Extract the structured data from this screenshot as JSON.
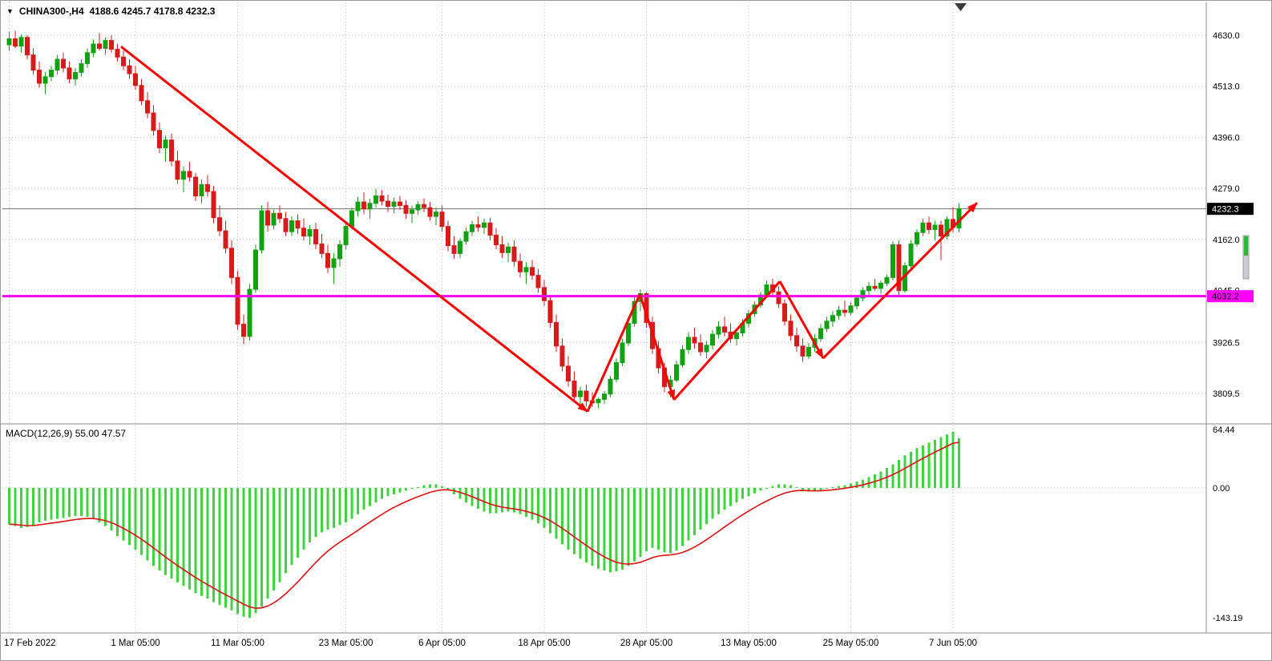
{
  "header": {
    "dropdown_icon": "▼",
    "symbol_period": "CHINA300-,H4",
    "ohlc_readout": "4188.6 4245.7 4178.8 4232.3"
  },
  "price_axis": {
    "ticks": [
      {
        "label": "4630.0",
        "value": 4630.0
      },
      {
        "label": "4513.0",
        "value": 4513.0
      },
      {
        "label": "4396.0",
        "value": 4396.0
      },
      {
        "label": "4279.0",
        "value": 4279.0
      },
      {
        "label": "4162.0",
        "value": 4162.0
      },
      {
        "label": "4045.0",
        "value": 4045.0
      },
      {
        "label": "3926.5",
        "value": 3926.5
      },
      {
        "label": "3809.5",
        "value": 3809.5
      }
    ],
    "badges": [
      {
        "name": "current-price-badge",
        "label": "4232.3",
        "value": 4232.3,
        "bg": "#000000",
        "fg": "#ffffff"
      },
      {
        "name": "hline-price-badge",
        "label": "4032.2",
        "value": 4032.2,
        "bg": "#ff00ff",
        "fg": "#000000"
      }
    ]
  },
  "macd_panel": {
    "label": "MACD(12,26,9) 55.00 47.57",
    "ticks": [
      {
        "label": "64.44",
        "value": 64.44
      },
      {
        "label": "0.00",
        "value": 0
      },
      {
        "label": "-143.19",
        "value": -143.19
      }
    ]
  },
  "x_axis": [
    {
      "label": "17 Feb 2022",
      "index": 0
    },
    {
      "label": "1 Mar 05:00",
      "index": 21
    },
    {
      "label": "11 Mar 05:00",
      "index": 38
    },
    {
      "label": "23 Mar 05:00",
      "index": 56
    },
    {
      "label": "6 Apr 05:00",
      "index": 72
    },
    {
      "label": "18 Apr 05:00",
      "index": 89
    },
    {
      "label": "28 Apr 05:00",
      "index": 106
    },
    {
      "label": "13 May 05:00",
      "index": 123
    },
    {
      "label": "25 May 05:00",
      "index": 140
    },
    {
      "label": "7 Jun 05:00",
      "index": 157
    }
  ],
  "chart_data": {
    "type": "candlestick",
    "symbol": "CHINA300-",
    "timeframe": "H4",
    "title": "CHINA300-,H4",
    "ohlc_last": {
      "open": 4188.6,
      "high": 4245.7,
      "low": 4178.8,
      "close": 4232.3
    },
    "price_line": 4232.3,
    "horizontal_line": 4032.2,
    "ylim_price": [
      3741.6,
      4705.2
    ],
    "grid": true,
    "candles": [
      [
        4608,
        4638,
        4595,
        4622
      ],
      [
        4622,
        4640,
        4600,
        4605
      ],
      [
        4605,
        4632,
        4590,
        4625
      ],
      [
        4625,
        4630,
        4575,
        4585
      ],
      [
        4585,
        4600,
        4540,
        4550
      ],
      [
        4550,
        4570,
        4510,
        4520
      ],
      [
        4520,
        4545,
        4495,
        4535
      ],
      [
        4535,
        4560,
        4525,
        4550
      ],
      [
        4550,
        4585,
        4540,
        4575
      ],
      [
        4575,
        4590,
        4545,
        4555
      ],
      [
        4555,
        4570,
        4520,
        4530
      ],
      [
        4530,
        4555,
        4515,
        4545
      ],
      [
        4545,
        4575,
        4535,
        4565
      ],
      [
        4565,
        4600,
        4555,
        4590
      ],
      [
        4590,
        4620,
        4580,
        4610
      ],
      [
        4610,
        4635,
        4595,
        4600
      ],
      [
        4600,
        4625,
        4585,
        4618
      ],
      [
        4618,
        4630,
        4590,
        4598
      ],
      [
        4598,
        4610,
        4570,
        4580
      ],
      [
        4580,
        4595,
        4550,
        4560
      ],
      [
        4560,
        4575,
        4530,
        4542
      ],
      [
        4542,
        4560,
        4505,
        4515
      ],
      [
        4515,
        4530,
        4470,
        4480
      ],
      [
        4480,
        4500,
        4440,
        4452
      ],
      [
        4452,
        4470,
        4400,
        4412
      ],
      [
        4412,
        4430,
        4360,
        4372
      ],
      [
        4372,
        4400,
        4340,
        4390
      ],
      [
        4390,
        4405,
        4330,
        4342
      ],
      [
        4342,
        4365,
        4290,
        4300
      ],
      [
        4300,
        4330,
        4270,
        4318
      ],
      [
        4318,
        4340,
        4295,
        4305
      ],
      [
        4305,
        4315,
        4250,
        4262
      ],
      [
        4262,
        4300,
        4245,
        4288
      ],
      [
        4288,
        4310,
        4260,
        4272
      ],
      [
        4272,
        4285,
        4200,
        4212
      ],
      [
        4212,
        4240,
        4170,
        4182
      ],
      [
        4182,
        4205,
        4130,
        4142
      ],
      [
        4142,
        4160,
        4060,
        4075
      ],
      [
        4075,
        4090,
        3955,
        3968
      ],
      [
        3968,
        3990,
        3922,
        3940
      ],
      [
        3940,
        4060,
        3930,
        4048
      ],
      [
        4048,
        4150,
        4040,
        4138
      ],
      [
        4138,
        4240,
        4130,
        4228
      ],
      [
        4228,
        4248,
        4180,
        4195
      ],
      [
        4195,
        4230,
        4185,
        4222
      ],
      [
        4222,
        4240,
        4200,
        4210
      ],
      [
        4210,
        4225,
        4170,
        4180
      ],
      [
        4180,
        4215,
        4170,
        4205
      ],
      [
        4205,
        4220,
        4175,
        4188
      ],
      [
        4188,
        4210,
        4160,
        4170
      ],
      [
        4170,
        4195,
        4150,
        4185
      ],
      [
        4185,
        4200,
        4140,
        4152
      ],
      [
        4152,
        4175,
        4120,
        4130
      ],
      [
        4130,
        4150,
        4085,
        4098
      ],
      [
        4098,
        4130,
        4060,
        4118
      ],
      [
        4118,
        4160,
        4100,
        4150
      ],
      [
        4150,
        4200,
        4140,
        4192
      ],
      [
        4192,
        4235,
        4185,
        4228
      ],
      [
        4228,
        4260,
        4215,
        4248
      ],
      [
        4248,
        4270,
        4220,
        4232
      ],
      [
        4232,
        4255,
        4210,
        4245
      ],
      [
        4245,
        4278,
        4235,
        4262
      ],
      [
        4262,
        4275,
        4240,
        4250
      ],
      [
        4250,
        4265,
        4225,
        4238
      ],
      [
        4238,
        4258,
        4222,
        4248
      ],
      [
        4248,
        4262,
        4230,
        4240
      ],
      [
        4240,
        4252,
        4210,
        4222
      ],
      [
        4222,
        4240,
        4200,
        4230
      ],
      [
        4230,
        4250,
        4218,
        4242
      ],
      [
        4242,
        4256,
        4225,
        4235
      ],
      [
        4235,
        4248,
        4205,
        4215
      ],
      [
        4215,
        4235,
        4195,
        4225
      ],
      [
        4225,
        4240,
        4180,
        4192
      ],
      [
        4192,
        4205,
        4135,
        4148
      ],
      [
        4148,
        4170,
        4118,
        4130
      ],
      [
        4130,
        4165,
        4120,
        4158
      ],
      [
        4158,
        4190,
        4150,
        4180
      ],
      [
        4180,
        4205,
        4170,
        4196
      ],
      [
        4196,
        4215,
        4180,
        4190
      ],
      [
        4190,
        4210,
        4175,
        4200
      ],
      [
        4200,
        4212,
        4160,
        4172
      ],
      [
        4172,
        4188,
        4140,
        4150
      ],
      [
        4150,
        4170,
        4120,
        4132
      ],
      [
        4132,
        4155,
        4110,
        4145
      ],
      [
        4145,
        4160,
        4100,
        4112
      ],
      [
        4112,
        4130,
        4075,
        4088
      ],
      [
        4088,
        4110,
        4060,
        4098
      ],
      [
        4098,
        4115,
        4070,
        4080
      ],
      [
        4080,
        4095,
        4040,
        4052
      ],
      [
        4052,
        4070,
        4010,
        4022
      ],
      [
        4022,
        4035,
        3960,
        3972
      ],
      [
        3972,
        3990,
        3905,
        3918
      ],
      [
        3918,
        3935,
        3860,
        3872
      ],
      [
        3872,
        3895,
        3825,
        3838
      ],
      [
        3838,
        3860,
        3790,
        3802
      ],
      [
        3802,
        3825,
        3775,
        3815
      ],
      [
        3815,
        3830,
        3780,
        3792
      ],
      [
        3792,
        3812,
        3778,
        3788
      ],
      [
        3788,
        3800,
        3776,
        3796
      ],
      [
        3796,
        3815,
        3785,
        3808
      ],
      [
        3808,
        3850,
        3800,
        3842
      ],
      [
        3842,
        3890,
        3835,
        3880
      ],
      [
        3880,
        3935,
        3872,
        3925
      ],
      [
        3925,
        3980,
        3918,
        3970
      ],
      [
        3970,
        4030,
        3962,
        4020
      ],
      [
        4020,
        4048,
        3998,
        4038
      ],
      [
        4038,
        4042,
        3960,
        3972
      ],
      [
        3972,
        3985,
        3900,
        3912
      ],
      [
        3912,
        3930,
        3855,
        3868
      ],
      [
        3868,
        3880,
        3812,
        3825
      ],
      [
        3825,
        3850,
        3800,
        3840
      ],
      [
        3840,
        3885,
        3835,
        3875
      ],
      [
        3875,
        3920,
        3868,
        3910
      ],
      [
        3910,
        3950,
        3900,
        3938
      ],
      [
        3938,
        3960,
        3912,
        3925
      ],
      [
        3925,
        3945,
        3895,
        3905
      ],
      [
        3905,
        3930,
        3890,
        3920
      ],
      [
        3920,
        3955,
        3910,
        3945
      ],
      [
        3945,
        3975,
        3935,
        3962
      ],
      [
        3962,
        3985,
        3940,
        3950
      ],
      [
        3950,
        3970,
        3925,
        3935
      ],
      [
        3935,
        3958,
        3920,
        3948
      ],
      [
        3948,
        3980,
        3940,
        3970
      ],
      [
        3970,
        4000,
        3960,
        3992
      ],
      [
        3992,
        4020,
        3985,
        4012
      ],
      [
        4012,
        4042,
        4005,
        4035
      ],
      [
        4035,
        4068,
        4028,
        4058
      ],
      [
        4058,
        4072,
        4030,
        4042
      ],
      [
        4042,
        4055,
        4005,
        4015
      ],
      [
        4015,
        4025,
        3965,
        3975
      ],
      [
        3975,
        3990,
        3930,
        3942
      ],
      [
        3942,
        3960,
        3905,
        3918
      ],
      [
        3918,
        3935,
        3882,
        3895
      ],
      [
        3895,
        3925,
        3888,
        3915
      ],
      [
        3915,
        3945,
        3905,
        3935
      ],
      [
        3935,
        3968,
        3928,
        3958
      ],
      [
        3958,
        3985,
        3950,
        3975
      ],
      [
        3975,
        3998,
        3962,
        3988
      ],
      [
        3988,
        4010,
        3978,
        4000
      ],
      [
        4000,
        4022,
        3985,
        3995
      ],
      [
        3995,
        4018,
        3988,
        4010
      ],
      [
        4010,
        4035,
        4002,
        4028
      ],
      [
        4028,
        4052,
        4020,
        4045
      ],
      [
        4045,
        4065,
        4035,
        4055
      ],
      [
        4055,
        4072,
        4045,
        4050
      ],
      [
        4050,
        4068,
        4038,
        4062
      ],
      [
        4062,
        4082,
        4055,
        4075
      ],
      [
        4075,
        4158,
        4068,
        4150
      ],
      [
        4150,
        4160,
        4032,
        4045
      ],
      [
        4045,
        4110,
        4040,
        4102
      ],
      [
        4102,
        4160,
        4095,
        4152
      ],
      [
        4152,
        4185,
        4145,
        4178
      ],
      [
        4178,
        4210,
        4170,
        4200
      ],
      [
        4200,
        4215,
        4175,
        4185
      ],
      [
        4185,
        4205,
        4160,
        4195
      ],
      [
        4195,
        4205,
        4115,
        4170
      ],
      [
        4170,
        4215,
        4162,
        4208
      ],
      [
        4208,
        4236,
        4178,
        4190
      ],
      [
        4188.6,
        4245.7,
        4178.8,
        4232.3
      ]
    ],
    "indicator": {
      "type": "MACD",
      "params": [
        12,
        26,
        9
      ],
      "macd_value": 55.0,
      "signal_value": 47.57,
      "ylim": [
        -159.9,
        68.9
      ],
      "histogram": [
        -40,
        -42,
        -44,
        -43,
        -41,
        -38,
        -36,
        -35,
        -34,
        -33,
        -32,
        -31,
        -31,
        -32,
        -34,
        -38,
        -42,
        -47,
        -53,
        -58,
        -63,
        -68,
        -74,
        -80,
        -86,
        -91,
        -96,
        -100,
        -104,
        -108,
        -112,
        -116,
        -119,
        -122,
        -126,
        -129,
        -132,
        -135,
        -139,
        -142,
        -143.19,
        -138,
        -131,
        -122,
        -113,
        -104,
        -94,
        -85,
        -77,
        -68,
        -60,
        -54,
        -49,
        -46,
        -44,
        -41,
        -38,
        -34,
        -29,
        -24,
        -20,
        -16,
        -12,
        -9,
        -7,
        -5,
        -3,
        -1,
        1,
        3,
        4,
        4,
        2,
        -2,
        -7,
        -12,
        -16,
        -20,
        -23,
        -26,
        -28,
        -28,
        -27,
        -26,
        -27,
        -29,
        -32,
        -35,
        -39,
        -44,
        -50,
        -56,
        -62,
        -68,
        -73,
        -78,
        -82,
        -86,
        -89,
        -91,
        -93,
        -92,
        -90,
        -86,
        -81,
        -76,
        -70,
        -66,
        -68,
        -71,
        -72,
        -69,
        -64,
        -58,
        -52,
        -46,
        -40,
        -34,
        -29,
        -24,
        -20,
        -16,
        -12,
        -9,
        -6,
        -3,
        -1,
        2,
        4,
        4,
        3,
        1,
        -2,
        -4,
        -4,
        -3,
        -1,
        1,
        2,
        3,
        5,
        7,
        9,
        12,
        15,
        18,
        22,
        26,
        31,
        36,
        40,
        44,
        47,
        50,
        53,
        56,
        59,
        62,
        55
      ]
    },
    "trend_arrows": [
      {
        "from": [
          18.6,
          4604
        ],
        "to": [
          96.2,
          3768
        ],
        "head": true
      },
      {
        "from": [
          96.2,
          3768
        ],
        "to": [
          104.9,
          4037
        ],
        "head": false
      },
      {
        "from": [
          104.9,
          4037
        ],
        "to": [
          110.6,
          3795
        ],
        "head": true
      },
      {
        "from": [
          110.6,
          3795
        ],
        "to": [
          128.2,
          4066
        ],
        "head": false
      },
      {
        "from": [
          128.2,
          4066
        ],
        "to": [
          135.4,
          3890
        ],
        "head": true
      },
      {
        "from": [
          135.4,
          3890
        ],
        "to": [
          161,
          4246
        ],
        "head": true
      }
    ]
  },
  "colors": {
    "bull": "#11a211",
    "bear": "#d91a1a",
    "macd_bar": "#3ed43e",
    "signal_line": "#e01010",
    "trend_arrow": "#ff0000",
    "horizontal_line": "#ff00ff",
    "grid": "#b9b9b9",
    "price_line": "#6f6f6f",
    "separator": "#8e8e8e",
    "axis_text": "#000000",
    "shift_marker": "#3a3a3a",
    "scrollbar_track": "#c9cdd1",
    "scrollbar_thumb": "#35b535"
  }
}
